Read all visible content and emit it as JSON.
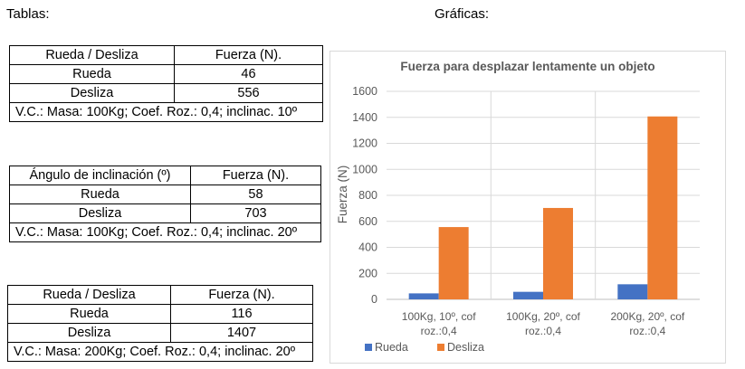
{
  "headings": {
    "tables": "Tablas:",
    "charts": "Gráficas:"
  },
  "tables": [
    {
      "header": [
        "Rueda / Desliza",
        "Fuerza (N)."
      ],
      "rows": [
        [
          "Rueda",
          "46"
        ],
        [
          "Desliza",
          "556"
        ]
      ],
      "note": "V.C.: Masa: 100Kg; Coef. Roz.: 0,4; inclinac. 10º"
    },
    {
      "header": [
        "Ángulo de inclinación (º)",
        "Fuerza (N)."
      ],
      "rows": [
        [
          "Rueda",
          "58"
        ],
        [
          "Desliza",
          "703"
        ]
      ],
      "note": "V.C.: Masa: 100Kg; Coef. Roz.: 0,4; inclinac. 20º"
    },
    {
      "header": [
        "Rueda / Desliza",
        "Fuerza (N)."
      ],
      "rows": [
        [
          "Rueda",
          "116"
        ],
        [
          "Desliza",
          "1407"
        ]
      ],
      "note": "V.C.: Masa: 200Kg; Coef. Roz.: 0,4; inclinac. 20º"
    }
  ],
  "chart_data": {
    "type": "bar",
    "title": "Fuerza para desplazar lentamente un objeto",
    "xlabel": "",
    "ylabel": "Fuerza (N)",
    "categories": [
      [
        "100Kg, 10º, cof",
        "roz.:0,4"
      ],
      [
        "100Kg, 20º, cof",
        "roz.:0,4"
      ],
      [
        "200Kg, 20º, cof",
        "roz.:0,4"
      ]
    ],
    "series": [
      {
        "name": "Rueda",
        "values": [
          46,
          58,
          116
        ],
        "color": "#4472c4"
      },
      {
        "name": "Desliza",
        "values": [
          556,
          703,
          1407
        ],
        "color": "#ed7d31"
      }
    ],
    "ylim": [
      0,
      1600
    ],
    "yticks": [
      "0",
      "200",
      "400",
      "600",
      "800",
      "1000",
      "1200",
      "1400",
      "1600"
    ],
    "grid": true,
    "legend": "bottom-left"
  }
}
